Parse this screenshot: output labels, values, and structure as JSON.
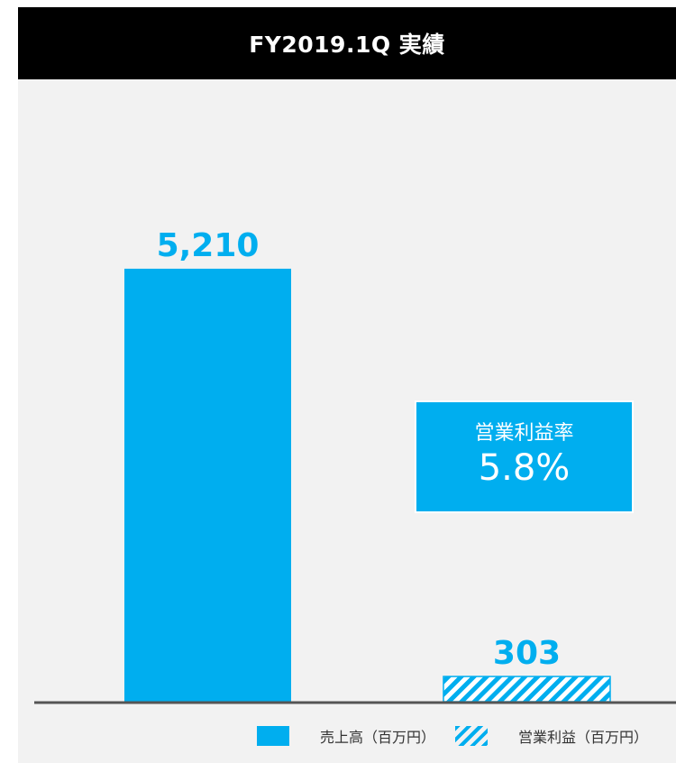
{
  "header": {
    "title": "FY2019.1Q  実績"
  },
  "ratio_box": {
    "title": "営業利益率",
    "value": "5.8%"
  },
  "colors": {
    "accent": "#00aeef",
    "header_bg": "#000000",
    "panel_bg": "#f2f2f2",
    "axis": "#555555"
  },
  "chart_data": {
    "type": "bar",
    "categories": [
      "売上高（百万円）",
      "営業利益（百万円）"
    ],
    "series": [
      {
        "name": "売上高（百万円）",
        "values": [
          5210,
          null
        ],
        "style": "solid"
      },
      {
        "name": "営業利益（百万円）",
        "values": [
          null,
          303
        ],
        "style": "hatched"
      }
    ],
    "data_labels": [
      "5,210",
      "303"
    ],
    "title": "FY2019.1Q  実績",
    "xlabel": "",
    "ylabel": "",
    "ylim": [
      0,
      5600
    ],
    "grid": false,
    "legend_position": "bottom-right"
  },
  "legend": [
    {
      "label": "売上高（百万円）",
      "icon": "solid-swatch"
    },
    {
      "label": "営業利益（百万円）",
      "icon": "hatched-swatch"
    }
  ]
}
